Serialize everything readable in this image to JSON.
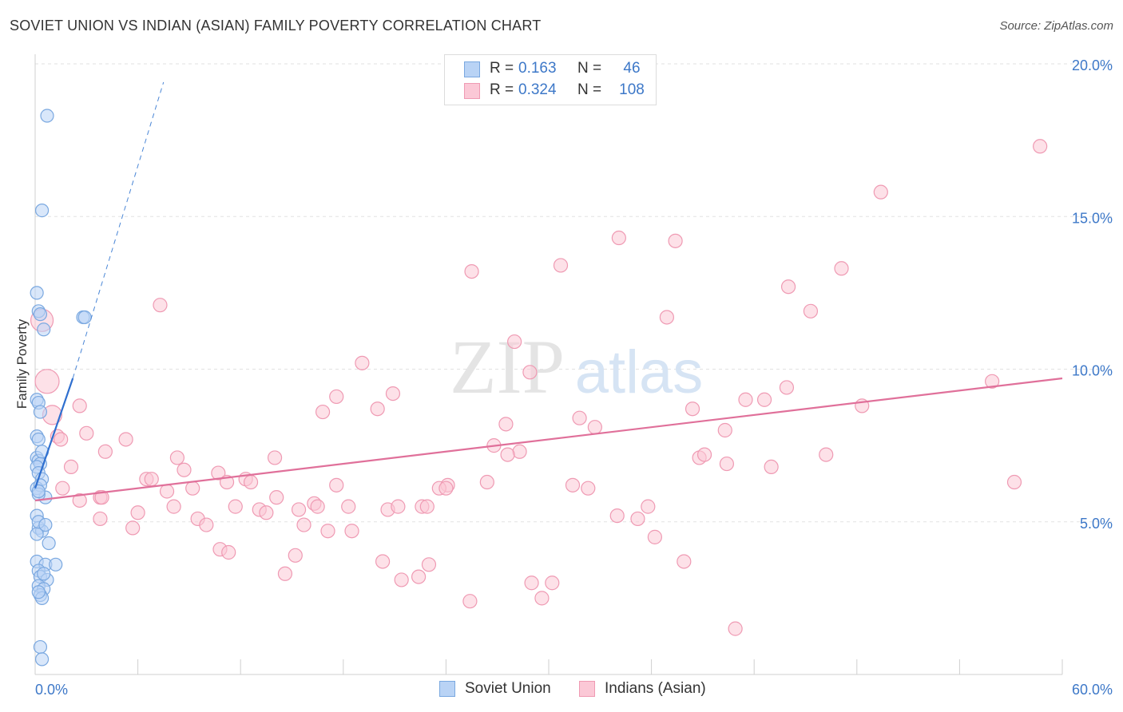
{
  "title": "SOVIET UNION VS INDIAN (ASIAN) FAMILY POVERTY CORRELATION CHART",
  "source": "Source: ZipAtlas.com",
  "watermark": {
    "zip": "ZIP",
    "atlas": "atlas"
  },
  "stats": [
    {
      "r_label": "R =",
      "r_value": "0.163",
      "n_label": "N =",
      "n_value": "46",
      "swatch_fill": "#b9d3f5",
      "swatch_border": "#7aa8e0"
    },
    {
      "r_label": "R =",
      "r_value": "0.324",
      "n_label": "N =",
      "n_value": "108",
      "swatch_fill": "#fbc8d6",
      "swatch_border": "#ef9ab3"
    }
  ],
  "legend": [
    {
      "label": "Soviet Union",
      "swatch_fill": "#b9d3f5",
      "swatch_border": "#7aa8e0"
    },
    {
      "label": "Indians (Asian)",
      "swatch_fill": "#fbc8d6",
      "swatch_border": "#ef9ab3"
    }
  ],
  "chart_data": {
    "type": "scatter",
    "title": "SOVIET UNION VS INDIAN (ASIAN) FAMILY POVERTY CORRELATION CHART",
    "xlabel": "",
    "ylabel": "Family Poverty",
    "xlim": [
      0,
      60
    ],
    "ylim": [
      0,
      20
    ],
    "x_tick_labels": [
      {
        "value": 0,
        "label": "0.0%"
      },
      {
        "value": 60,
        "label": "60.0%"
      }
    ],
    "y_tick_labels": [
      {
        "value": 5,
        "label": "5.0%"
      },
      {
        "value": 10,
        "label": "10.0%"
      },
      {
        "value": 15,
        "label": "15.0%"
      },
      {
        "value": 20,
        "label": "20.0%"
      }
    ],
    "x_minor_ticks": [
      0,
      6,
      12,
      18,
      24,
      30,
      36,
      42,
      48,
      54,
      60
    ],
    "grid": true,
    "legend_position": "bottom-center",
    "series": [
      {
        "name": "Soviet Union",
        "color": "#7aa8e0",
        "fill": "#b9d3f5",
        "R": 0.163,
        "N": 46,
        "trend": {
          "x0": 0,
          "y0": 6.1,
          "x1": 2.2,
          "y1": 9.7,
          "dash_x1": 7.5,
          "dash_y1": 19.4
        },
        "points": [
          [
            0.7,
            18.3
          ],
          [
            0.4,
            15.2
          ],
          [
            0.1,
            12.5
          ],
          [
            0.2,
            11.9
          ],
          [
            0.3,
            11.8
          ],
          [
            2.8,
            11.7
          ],
          [
            2.9,
            11.7
          ],
          [
            0.5,
            11.3
          ],
          [
            0.1,
            9.0
          ],
          [
            0.2,
            8.9
          ],
          [
            0.1,
            7.8
          ],
          [
            0.2,
            7.7
          ],
          [
            0.1,
            7.1
          ],
          [
            0.2,
            7.0
          ],
          [
            0.3,
            6.9
          ],
          [
            0.1,
            6.8
          ],
          [
            0.2,
            6.6
          ],
          [
            0.4,
            6.4
          ],
          [
            0.1,
            6.1
          ],
          [
            0.3,
            6.2
          ],
          [
            0.6,
            5.8
          ],
          [
            0.2,
            5.9
          ],
          [
            0.1,
            5.2
          ],
          [
            0.2,
            4.8
          ],
          [
            0.4,
            4.7
          ],
          [
            0.1,
            4.6
          ],
          [
            0.8,
            4.3
          ],
          [
            0.1,
            3.7
          ],
          [
            0.6,
            3.6
          ],
          [
            1.2,
            3.6
          ],
          [
            0.2,
            3.4
          ],
          [
            0.3,
            3.2
          ],
          [
            0.7,
            3.1
          ],
          [
            0.2,
            2.9
          ],
          [
            0.5,
            2.8
          ],
          [
            0.3,
            2.6
          ],
          [
            0.4,
            2.5
          ],
          [
            0.2,
            2.7
          ],
          [
            0.3,
            0.9
          ],
          [
            0.4,
            0.5
          ],
          [
            0.2,
            5.0
          ],
          [
            0.6,
            4.9
          ],
          [
            0.5,
            3.3
          ],
          [
            0.2,
            6.0
          ],
          [
            0.4,
            7.3
          ],
          [
            0.3,
            8.6
          ]
        ]
      },
      {
        "name": "Indians (Asian)",
        "color": "#ef9ab3",
        "fill": "#fbc8d6",
        "R": 0.324,
        "N": 108,
        "trend": {
          "x0": 0,
          "y0": 5.7,
          "x1": 60,
          "y1": 9.7
        },
        "points": [
          [
            58.7,
            17.3
          ],
          [
            49.4,
            15.8
          ],
          [
            34.1,
            14.3
          ],
          [
            37.4,
            14.2
          ],
          [
            30.7,
            13.4
          ],
          [
            25.5,
            13.2
          ],
          [
            47.1,
            13.3
          ],
          [
            44.0,
            12.7
          ],
          [
            7.3,
            12.1
          ],
          [
            36.9,
            11.7
          ],
          [
            45.3,
            11.9
          ],
          [
            28.0,
            10.9
          ],
          [
            19.1,
            10.2
          ],
          [
            28.9,
            9.9
          ],
          [
            55.9,
            9.6
          ],
          [
            43.9,
            9.4
          ],
          [
            20.9,
            9.2
          ],
          [
            17.6,
            9.1
          ],
          [
            41.5,
            9.0
          ],
          [
            42.6,
            9.0
          ],
          [
            2.6,
            8.8
          ],
          [
            20.0,
            8.7
          ],
          [
            16.8,
            8.6
          ],
          [
            48.3,
            8.8
          ],
          [
            38.4,
            8.7
          ],
          [
            31.8,
            8.4
          ],
          [
            32.7,
            8.1
          ],
          [
            27.5,
            8.2
          ],
          [
            40.3,
            8.0
          ],
          [
            3.0,
            7.9
          ],
          [
            1.3,
            7.8
          ],
          [
            5.3,
            7.7
          ],
          [
            1.5,
            7.7
          ],
          [
            26.8,
            7.5
          ],
          [
            28.3,
            7.3
          ],
          [
            4.1,
            7.3
          ],
          [
            27.6,
            7.2
          ],
          [
            14.0,
            7.1
          ],
          [
            8.3,
            7.1
          ],
          [
            38.8,
            7.1
          ],
          [
            39.1,
            7.2
          ],
          [
            46.2,
            7.2
          ],
          [
            2.1,
            6.8
          ],
          [
            40.4,
            6.9
          ],
          [
            43.0,
            6.8
          ],
          [
            8.7,
            6.7
          ],
          [
            10.7,
            6.6
          ],
          [
            6.5,
            6.4
          ],
          [
            6.8,
            6.4
          ],
          [
            12.3,
            6.4
          ],
          [
            11.2,
            6.3
          ],
          [
            12.6,
            6.3
          ],
          [
            1.6,
            6.1
          ],
          [
            9.2,
            6.1
          ],
          [
            17.6,
            6.2
          ],
          [
            24.1,
            6.2
          ],
          [
            26.4,
            6.3
          ],
          [
            31.4,
            6.2
          ],
          [
            32.3,
            6.1
          ],
          [
            23.6,
            6.1
          ],
          [
            24.0,
            6.1
          ],
          [
            57.2,
            6.3
          ],
          [
            7.7,
            6.0
          ],
          [
            14.1,
            5.8
          ],
          [
            3.8,
            5.8
          ],
          [
            2.6,
            5.7
          ],
          [
            16.3,
            5.6
          ],
          [
            16.5,
            5.5
          ],
          [
            11.7,
            5.5
          ],
          [
            13.1,
            5.4
          ],
          [
            15.4,
            5.4
          ],
          [
            8.1,
            5.5
          ],
          [
            20.6,
            5.4
          ],
          [
            21.2,
            5.5
          ],
          [
            22.6,
            5.5
          ],
          [
            22.9,
            5.5
          ],
          [
            35.8,
            5.5
          ],
          [
            6.0,
            5.3
          ],
          [
            13.5,
            5.3
          ],
          [
            3.8,
            5.1
          ],
          [
            9.5,
            5.1
          ],
          [
            34.0,
            5.2
          ],
          [
            35.2,
            5.1
          ],
          [
            10.0,
            4.9
          ],
          [
            15.7,
            4.9
          ],
          [
            5.7,
            4.8
          ],
          [
            17.1,
            4.7
          ],
          [
            18.5,
            4.7
          ],
          [
            36.2,
            4.5
          ],
          [
            10.8,
            4.1
          ],
          [
            11.3,
            4.0
          ],
          [
            15.2,
            3.9
          ],
          [
            20.3,
            3.7
          ],
          [
            23.0,
            3.6
          ],
          [
            37.9,
            3.7
          ],
          [
            14.6,
            3.3
          ],
          [
            21.4,
            3.1
          ],
          [
            22.4,
            3.2
          ],
          [
            29.0,
            3.0
          ],
          [
            30.2,
            3.0
          ],
          [
            29.6,
            2.5
          ],
          [
            25.4,
            2.4
          ],
          [
            40.9,
            1.5
          ],
          [
            3.9,
            5.8
          ],
          [
            0.4,
            11.6
          ],
          [
            0.7,
            9.6
          ],
          [
            1.0,
            8.5
          ],
          [
            18.3,
            5.5
          ]
        ],
        "large_points": [
          [
            0.4,
            11.6
          ],
          [
            0.7,
            9.6
          ],
          [
            1.0,
            8.5
          ]
        ]
      }
    ]
  }
}
